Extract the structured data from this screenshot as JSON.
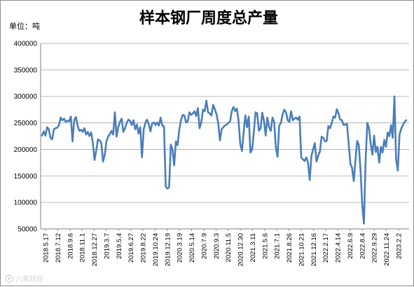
{
  "chart_data": {
    "type": "line",
    "title": "样本钢厂周度总产量",
    "unit_label": "单位：吨",
    "ylim": [
      50000,
      400000
    ],
    "y_ticks": [
      "400000",
      "350000",
      "300000",
      "250000",
      "200000",
      "150000",
      "100000",
      "50000"
    ],
    "grid": true,
    "line_color": "#4a7ebb",
    "x_tick_labels": [
      "2018.5.17",
      "2018.7.12",
      "2018.9.6",
      "2018.11.1",
      "2018.12.27",
      "2019.3.7",
      "2019.5.4",
      "2019.6.27",
      "2019.8.22",
      "2019.10.24",
      "2019.12.19",
      "2020.3.19",
      "2020.5.14",
      "2020.7.9",
      "2020.9.3",
      "2020.11.5",
      "2020.12.30",
      "2021.3.11",
      "2021.5.6",
      "2021.7.1",
      "2021.8.26",
      "2021.10.21",
      "2021.12.16",
      "2022.2.17",
      "2022.4.14",
      "2022.6.9",
      "2022.8.4",
      "2022.9.29",
      "2022.11.24",
      "2023.2.2"
    ],
    "series": [
      {
        "values": [
          226000,
          234000,
          226000,
          242000,
          238000,
          222000,
          219000,
          238000,
          240000,
          241000,
          246000,
          260000,
          255000,
          258000,
          252000,
          254000,
          253000,
          262000,
          215000,
          255000,
          261000,
          245000,
          235000,
          237000,
          233000,
          240000,
          228000,
          233000,
          225000,
          232000,
          212000,
          180000,
          198000,
          219000,
          217000,
          212000,
          177000,
          189000,
          215000,
          224000,
          229000,
          235000,
          228000,
          270000,
          224000,
          242000,
          252000,
          258000,
          233000,
          240000,
          250000,
          256000,
          254000,
          246000,
          255000,
          238000,
          247000,
          230000,
          242000,
          185000,
          238000,
          250000,
          256000,
          247000,
          234000,
          249000,
          251000,
          246000,
          251000,
          245000,
          260000,
          245000,
          243000,
          130000,
          126000,
          128000,
          209000,
          200000,
          170000,
          215000,
          208000,
          237000,
          255000,
          265000,
          264000,
          251000,
          253000,
          270000,
          265000,
          268000,
          272000,
          263000,
          278000,
          240000,
          251000,
          275000,
          272000,
          292000,
          270000,
          268000,
          264000,
          284000,
          276000,
          266000,
          250000,
          217000,
          238000,
          242000,
          245000,
          247000,
          250000,
          253000,
          272000,
          280000,
          272000,
          277000,
          254000,
          210000,
          197000,
          232000,
          264000,
          242000,
          262000,
          194000,
          200000,
          232000,
          270000,
          268000,
          235000,
          240000,
          269000,
          254000,
          226000,
          260000,
          242000,
          235000,
          260000,
          252000,
          204000,
          186000,
          245000,
          250000,
          266000,
          275000,
          270000,
          255000,
          252000,
          272000,
          255000,
          258000,
          260000,
          256000,
          262000,
          185000,
          181000,
          178000,
          185000,
          175000,
          142000,
          188000,
          200000,
          212000,
          177000,
          188000,
          196000,
          224000,
          222000,
          215000,
          216000,
          244000,
          240000,
          250000,
          262000,
          260000,
          276000,
          268000,
          256000,
          255000,
          246000,
          247000,
          248000,
          210000,
          173000,
          165000,
          140000,
          180000,
          216000,
          208000,
          160000,
          95000,
          60000,
          180000,
          250000,
          240000,
          210000,
          190000,
          226000,
          195000,
          205000,
          175000,
          205000,
          194000,
          218000,
          205000,
          232000,
          225000,
          246000,
          222000,
          300000,
          180000,
          160000,
          228000,
          239000,
          246000,
          252000,
          255000
        ]
      }
    ]
  },
  "watermark": "六氮财经"
}
